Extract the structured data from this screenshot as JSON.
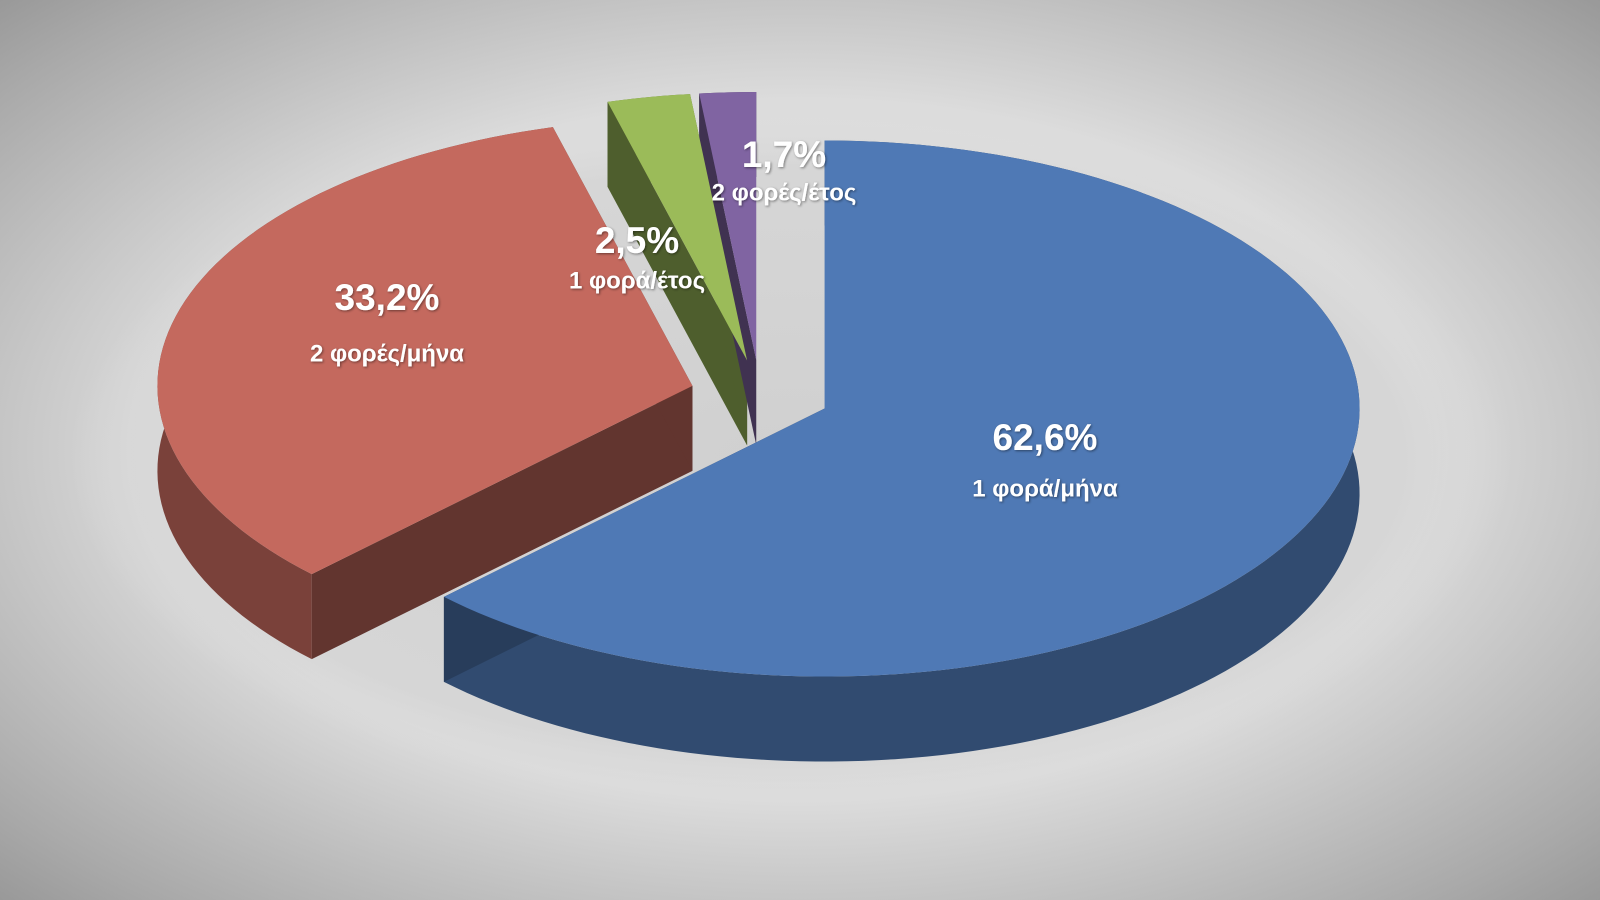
{
  "chart_data": {
    "type": "pie",
    "categories": [
      "1 φορά/μήνα",
      "2 φορές/μήνα",
      "1 φορά/έτος",
      "2 φορές/έτος"
    ],
    "values": [
      62.6,
      33.2,
      2.5,
      1.7
    ],
    "value_labels": [
      "62,6%",
      "33,2%",
      "2,5%",
      "1,7%"
    ],
    "colors": [
      "#4f79b5",
      "#c4695e",
      "#9bbb59",
      "#8064a2"
    ]
  }
}
